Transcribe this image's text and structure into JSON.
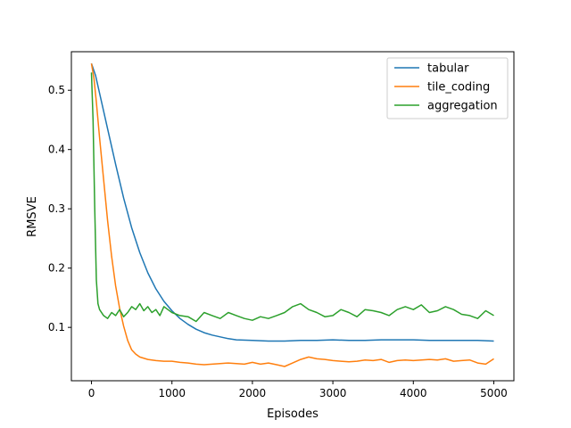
{
  "chart_data": {
    "type": "line",
    "title": "",
    "xlabel": "Episodes",
    "ylabel": "RMSVE",
    "xlim": [
      -250,
      5250
    ],
    "ylim": [
      0.01,
      0.565
    ],
    "xticks": [
      0,
      1000,
      2000,
      3000,
      4000,
      5000
    ],
    "yticks": [
      0.1,
      0.2,
      0.3,
      0.4,
      0.5
    ],
    "xtick_labels": [
      "0",
      "1000",
      "2000",
      "3000",
      "4000",
      "5000"
    ],
    "ytick_labels": [
      "0.1",
      "0.2",
      "0.3",
      "0.4",
      "0.5"
    ],
    "grid": false,
    "legend": "top-right",
    "series": [
      {
        "name": "tabular",
        "color": "#1f77b4",
        "x": [
          0,
          50,
          100,
          200,
          300,
          400,
          500,
          600,
          700,
          800,
          900,
          1000,
          1100,
          1200,
          1300,
          1400,
          1500,
          1600,
          1700,
          1800,
          2000,
          2200,
          2400,
          2600,
          2800,
          3000,
          3200,
          3400,
          3600,
          3800,
          4000,
          4200,
          4400,
          4600,
          4800,
          5000
        ],
        "y": [
          0.545,
          0.525,
          0.495,
          0.435,
          0.375,
          0.318,
          0.268,
          0.226,
          0.192,
          0.165,
          0.144,
          0.128,
          0.115,
          0.105,
          0.097,
          0.091,
          0.087,
          0.084,
          0.081,
          0.079,
          0.078,
          0.077,
          0.077,
          0.078,
          0.078,
          0.079,
          0.078,
          0.078,
          0.079,
          0.079,
          0.079,
          0.078,
          0.078,
          0.078,
          0.078,
          0.077
        ]
      },
      {
        "name": "tile_coding",
        "color": "#ff7f0e",
        "x": [
          0,
          30,
          60,
          100,
          150,
          200,
          250,
          300,
          350,
          400,
          450,
          500,
          550,
          600,
          700,
          800,
          900,
          1000,
          1100,
          1200,
          1300,
          1400,
          1500,
          1600,
          1700,
          1800,
          1900,
          2000,
          2100,
          2200,
          2300,
          2400,
          2500,
          2600,
          2700,
          2800,
          2900,
          3000,
          3100,
          3200,
          3300,
          3400,
          3500,
          3600,
          3700,
          3800,
          3900,
          4000,
          4100,
          4200,
          4300,
          4400,
          4500,
          4600,
          4700,
          4800,
          4900,
          5000
        ],
        "y": [
          0.545,
          0.52,
          0.48,
          0.42,
          0.35,
          0.28,
          0.22,
          0.17,
          0.132,
          0.102,
          0.078,
          0.062,
          0.055,
          0.05,
          0.046,
          0.044,
          0.043,
          0.043,
          0.041,
          0.04,
          0.038,
          0.037,
          0.038,
          0.039,
          0.04,
          0.039,
          0.038,
          0.041,
          0.038,
          0.04,
          0.037,
          0.034,
          0.04,
          0.046,
          0.05,
          0.047,
          0.046,
          0.044,
          0.043,
          0.042,
          0.043,
          0.045,
          0.044,
          0.046,
          0.041,
          0.044,
          0.045,
          0.044,
          0.045,
          0.046,
          0.045,
          0.047,
          0.043,
          0.044,
          0.045,
          0.04,
          0.038,
          0.047
        ]
      },
      {
        "name": "aggregation",
        "color": "#2ca02c",
        "x": [
          0,
          20,
          40,
          60,
          80,
          100,
          150,
          200,
          250,
          300,
          350,
          400,
          450,
          500,
          550,
          600,
          650,
          700,
          750,
          800,
          850,
          900,
          950,
          1000,
          1100,
          1200,
          1300,
          1400,
          1500,
          1600,
          1700,
          1800,
          1900,
          2000,
          2100,
          2200,
          2300,
          2400,
          2500,
          2600,
          2700,
          2800,
          2900,
          3000,
          3100,
          3200,
          3300,
          3400,
          3500,
          3600,
          3700,
          3800,
          3900,
          4000,
          4100,
          4200,
          4300,
          4400,
          4500,
          4600,
          4700,
          4800,
          4900,
          5000
        ],
        "y": [
          0.53,
          0.45,
          0.3,
          0.18,
          0.14,
          0.13,
          0.12,
          0.115,
          0.125,
          0.12,
          0.13,
          0.118,
          0.125,
          0.135,
          0.13,
          0.14,
          0.128,
          0.135,
          0.125,
          0.13,
          0.12,
          0.135,
          0.13,
          0.125,
          0.12,
          0.118,
          0.11,
          0.125,
          0.12,
          0.115,
          0.125,
          0.12,
          0.115,
          0.112,
          0.118,
          0.115,
          0.12,
          0.125,
          0.135,
          0.14,
          0.13,
          0.125,
          0.118,
          0.12,
          0.13,
          0.125,
          0.118,
          0.13,
          0.128,
          0.125,
          0.12,
          0.13,
          0.135,
          0.13,
          0.138,
          0.125,
          0.128,
          0.135,
          0.13,
          0.122,
          0.12,
          0.115,
          0.128,
          0.12
        ]
      }
    ]
  }
}
